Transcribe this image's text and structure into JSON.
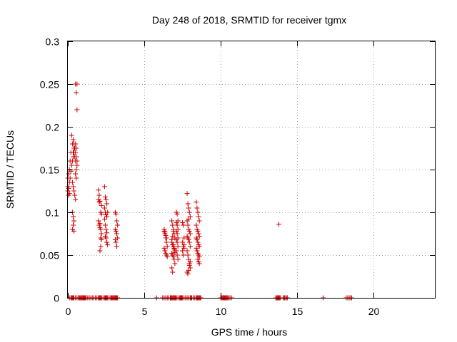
{
  "chart_data": {
    "type": "scatter",
    "title": "Day 248 of 2018, SRMTID for receiver tgmx",
    "xlabel": "GPS time / hours",
    "ylabel": "SRMTID / TECUs",
    "xlim": [
      0,
      24
    ],
    "ylim": [
      0,
      0.3
    ],
    "xticks": [
      0,
      5,
      10,
      15,
      20
    ],
    "xtick_labels": [
      "0",
      "5",
      "10",
      "15",
      "20"
    ],
    "yticks": [
      0,
      0.05,
      0.1,
      0.15,
      0.2,
      0.25,
      0.3
    ],
    "ytick_labels": [
      "0",
      "0.05",
      "0.1",
      "0.15",
      "0.2",
      "0.25",
      "0.3"
    ],
    "grid": true,
    "marker": "plus",
    "color": "#cc0000",
    "series": [
      {
        "name": "SRMTID",
        "x": [
          0.0,
          0.05,
          0.1,
          0.15,
          0.2,
          0.25,
          0.3,
          0.35,
          0.4,
          0.45,
          0.5,
          0.55,
          0.6,
          0.25,
          0.3,
          0.35,
          0.4,
          0.45,
          0.5,
          0.55,
          0.6,
          0.35,
          0.4,
          0.45,
          0.5,
          0.55,
          0.6,
          0.3,
          0.35,
          0.4,
          0.45,
          0.5,
          0.55,
          0.3,
          0.35,
          0.4,
          0.3,
          0.35,
          0.4,
          0.0,
          0.05,
          0.1,
          0.15,
          0.2,
          0.0,
          0.05,
          0.1,
          0.5,
          0.55,
          0.6,
          0.5,
          2.0,
          2.05,
          2.1,
          2.15,
          2.2,
          2.0,
          2.05,
          2.1,
          2.15,
          2.2,
          2.0,
          2.05,
          2.1,
          2.15,
          2.2,
          2.1,
          2.15,
          2.2,
          2.4,
          2.45,
          2.5,
          2.55,
          2.4,
          2.45,
          2.5,
          2.55,
          2.4,
          2.45,
          2.5,
          2.55,
          2.6,
          2.45,
          2.5,
          2.55,
          2.6,
          3.1,
          3.15,
          3.2,
          3.25,
          3.1,
          3.15,
          3.2,
          3.25,
          3.1,
          3.15,
          3.2,
          6.3,
          6.35,
          6.4,
          6.45,
          6.5,
          6.3,
          6.35,
          6.4,
          6.45,
          6.5,
          6.3,
          6.35,
          6.4,
          6.45,
          6.8,
          6.85,
          6.9,
          6.95,
          7.0,
          6.8,
          6.85,
          6.9,
          6.95,
          7.0,
          6.8,
          6.85,
          6.9,
          6.95,
          7.0,
          6.8,
          6.85,
          6.9,
          6.95,
          7.0,
          6.8,
          6.85,
          6.9,
          7.1,
          7.15,
          7.2,
          7.1,
          7.15,
          7.2,
          7.1,
          7.15,
          7.2,
          7.1,
          7.15,
          7.2,
          7.1,
          7.15,
          7.2,
          7.5,
          7.55,
          7.6,
          7.5,
          7.55,
          7.6,
          7.5,
          7.55,
          7.6,
          7.8,
          7.85,
          7.9,
          7.95,
          8.0,
          7.8,
          7.85,
          7.9,
          7.95,
          8.0,
          7.8,
          7.85,
          7.9,
          7.95,
          8.0,
          7.8,
          7.85,
          7.9,
          7.95,
          8.0,
          7.8,
          7.85,
          7.9,
          7.95,
          8.0,
          7.9,
          8.4,
          8.45,
          8.5,
          8.55,
          8.6,
          8.4,
          8.45,
          8.5,
          8.55,
          8.6,
          8.4,
          8.45,
          8.5,
          8.55,
          8.6,
          8.4,
          8.45,
          8.5,
          8.55,
          8.6,
          8.5,
          8.55,
          8.6,
          13.8,
          0.1,
          0.2,
          0.25,
          0.3,
          0.35,
          0.4,
          0.5,
          0.6,
          0.7,
          0.75,
          0.8,
          0.85,
          0.9,
          0.95,
          1.0,
          1.05,
          1.1,
          1.15,
          1.2,
          1.3,
          1.4,
          1.5,
          1.6,
          1.7,
          1.8,
          1.9,
          2.0,
          2.05,
          2.1,
          2.15,
          2.2,
          2.3,
          2.4,
          2.45,
          2.5,
          2.55,
          2.6,
          2.7,
          2.8,
          2.85,
          2.9,
          2.95,
          3.0,
          3.05,
          3.1,
          3.15,
          3.2,
          3.25,
          5.8,
          6.2,
          6.3,
          6.4,
          6.5,
          6.6,
          6.7,
          6.75,
          6.8,
          6.85,
          6.9,
          6.95,
          7.0,
          7.05,
          7.1,
          7.2,
          7.3,
          7.35,
          7.4,
          7.45,
          7.5,
          7.6,
          7.7,
          7.8,
          7.9,
          8.0,
          8.05,
          8.1,
          8.2,
          8.3,
          8.4,
          8.45,
          8.5,
          8.55,
          8.6,
          8.65,
          8.7,
          10.0,
          10.05,
          10.1,
          10.15,
          10.2,
          10.25,
          10.3,
          10.35,
          10.4,
          10.45,
          10.5,
          10.6,
          10.7,
          13.6,
          13.65,
          13.7,
          13.75,
          13.8,
          13.85,
          13.9,
          14.1,
          14.15,
          14.2,
          14.3,
          14.35,
          16.7,
          18.2,
          18.3,
          18.4,
          18.5,
          18.55
        ],
        "y": [
          0.14,
          0.145,
          0.15,
          0.16,
          0.17,
          0.19,
          0.18,
          0.17,
          0.175,
          0.165,
          0.25,
          0.24,
          0.22,
          0.155,
          0.16,
          0.165,
          0.17,
          0.175,
          0.18,
          0.175,
          0.16,
          0.185,
          0.18,
          0.175,
          0.17,
          0.165,
          0.155,
          0.135,
          0.13,
          0.125,
          0.12,
          0.115,
          0.15,
          0.1,
          0.095,
          0.09,
          0.08,
          0.085,
          0.078,
          0.125,
          0.12,
          0.135,
          0.14,
          0.148,
          0.13,
          0.128,
          0.122,
          0.145,
          0.14,
          0.25,
          0.16,
          0.126,
          0.12,
          0.113,
          0.1,
          0.098,
          0.09,
          0.085,
          0.087,
          0.08,
          0.075,
          0.115,
          0.112,
          0.082,
          0.07,
          0.068,
          0.055,
          0.06,
          0.108,
          0.13,
          0.118,
          0.115,
          0.11,
          0.105,
          0.1,
          0.097,
          0.095,
          0.092,
          0.085,
          0.08,
          0.076,
          0.1,
          0.072,
          0.07,
          0.065,
          0.062,
          0.1,
          0.098,
          0.09,
          0.085,
          0.08,
          0.078,
          0.075,
          0.07,
          0.068,
          0.065,
          0.06,
          0.078,
          0.075,
          0.07,
          0.065,
          0.06,
          0.058,
          0.055,
          0.052,
          0.05,
          0.048,
          0.08,
          0.077,
          0.073,
          0.07,
          0.09,
          0.085,
          0.08,
          0.075,
          0.07,
          0.065,
          0.062,
          0.06,
          0.058,
          0.055,
          0.052,
          0.05,
          0.048,
          0.045,
          0.04,
          0.035,
          0.03,
          0.062,
          0.057,
          0.053,
          0.068,
          0.072,
          0.078,
          0.1,
          0.098,
          0.09,
          0.088,
          0.085,
          0.08,
          0.078,
          0.075,
          0.07,
          0.068,
          0.065,
          0.06,
          0.055,
          0.05,
          0.045,
          0.088,
          0.085,
          0.07,
          0.065,
          0.06,
          0.058,
          0.055,
          0.05,
          0.062,
          0.122,
          0.11,
          0.105,
          0.1,
          0.095,
          0.09,
          0.085,
          0.08,
          0.078,
          0.075,
          0.072,
          0.07,
          0.068,
          0.065,
          0.06,
          0.055,
          0.05,
          0.045,
          0.04,
          0.035,
          0.03,
          0.028,
          0.032,
          0.038,
          0.042,
          0.092,
          0.112,
          0.105,
          0.1,
          0.095,
          0.09,
          0.085,
          0.08,
          0.078,
          0.075,
          0.072,
          0.07,
          0.068,
          0.065,
          0.062,
          0.06,
          0.058,
          0.055,
          0.052,
          0.05,
          0.048,
          0.045,
          0.042,
          0.04,
          0.086,
          0,
          0,
          0,
          0,
          0,
          0,
          0,
          0,
          0,
          0,
          0,
          0,
          0,
          0,
          0,
          0,
          0,
          0,
          0,
          0,
          0,
          0,
          0,
          0,
          0,
          0,
          0,
          0,
          0,
          0,
          0,
          0,
          0,
          0,
          0,
          0,
          0,
          0,
          0,
          0,
          0,
          0,
          0,
          0,
          0,
          0,
          0,
          0,
          0,
          0,
          0,
          0,
          0,
          0,
          0,
          0,
          0,
          0,
          0,
          0,
          0,
          0,
          0,
          0,
          0,
          0,
          0,
          0,
          0,
          0,
          0,
          0,
          0,
          0,
          0,
          0,
          0,
          0,
          0,
          0,
          0,
          0,
          0,
          0,
          0,
          0,
          0,
          0,
          0,
          0,
          0,
          0,
          0,
          0,
          0,
          0,
          0,
          0,
          0,
          0,
          0,
          0,
          0,
          0,
          0,
          0,
          0,
          0,
          0,
          0,
          0,
          0,
          0,
          0,
          0,
          0
        ]
      }
    ]
  }
}
